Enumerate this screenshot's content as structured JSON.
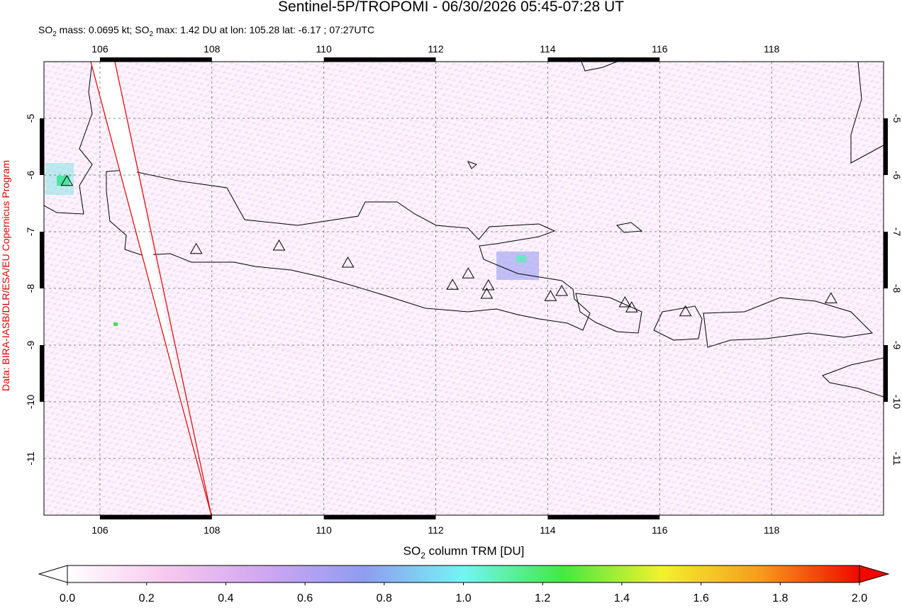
{
  "header": {
    "title": "Sentinel-5P/TROPOMI - 06/30/2026 05:45-07:28 UT",
    "subtitle": [
      "SO",
      "2",
      " mass: 0.0695 kt; SO",
      "2",
      " max: 1.42 DU at lon: 105.28 lat: -6.17 ; 07:27UTC"
    ],
    "credit": "Data: BIRA-IASB/DLR/ESA/EU Copernicus Program"
  },
  "map": {
    "xlim": [
      105,
      120
    ],
    "ylim": [
      -12,
      -4
    ],
    "xticks": [
      106,
      108,
      110,
      112,
      114,
      116,
      118
    ],
    "yticks": [
      -5,
      -6,
      -7,
      -8,
      -9,
      -10,
      -11
    ],
    "grid": true,
    "volcanoes": {
      "lon": [
        105.41,
        107.72,
        109.2,
        110.43,
        112.3,
        112.58,
        112.94,
        112.91,
        114.05,
        114.25,
        115.38,
        115.5,
        116.46,
        119.06
      ],
      "lat": [
        -6.11,
        -7.31,
        -7.25,
        -7.55,
        -7.94,
        -7.74,
        -7.95,
        -8.1,
        -8.14,
        -8.05,
        -8.25,
        -8.34,
        -8.41,
        -8.18
      ]
    }
  },
  "colorbar": {
    "label": [
      "SO",
      "2",
      " column TRM [DU]"
    ],
    "lim": [
      0,
      2
    ],
    "ticks": [
      {
        "value": 0,
        "label": "0.0"
      },
      {
        "value": 0.2,
        "label": "0.2"
      },
      {
        "value": 0.4,
        "label": "0.4"
      },
      {
        "value": 0.6,
        "label": "0.6"
      },
      {
        "value": 0.8,
        "label": "0.8"
      },
      {
        "value": 1,
        "label": "1.0"
      },
      {
        "value": 1.2,
        "label": "1.2"
      },
      {
        "value": 1.4,
        "label": "1.4"
      },
      {
        "value": 1.6,
        "label": "1.6"
      },
      {
        "value": 1.8,
        "label": "1.8"
      },
      {
        "value": 2,
        "label": "2.0"
      }
    ],
    "colors": [
      "#ffffff",
      "#f7c8ee",
      "#cfa6f2",
      "#8f9cf0",
      "#74f4f4",
      "#44e844",
      "#f2f22c",
      "#f59c1e",
      "#f00800"
    ]
  }
}
